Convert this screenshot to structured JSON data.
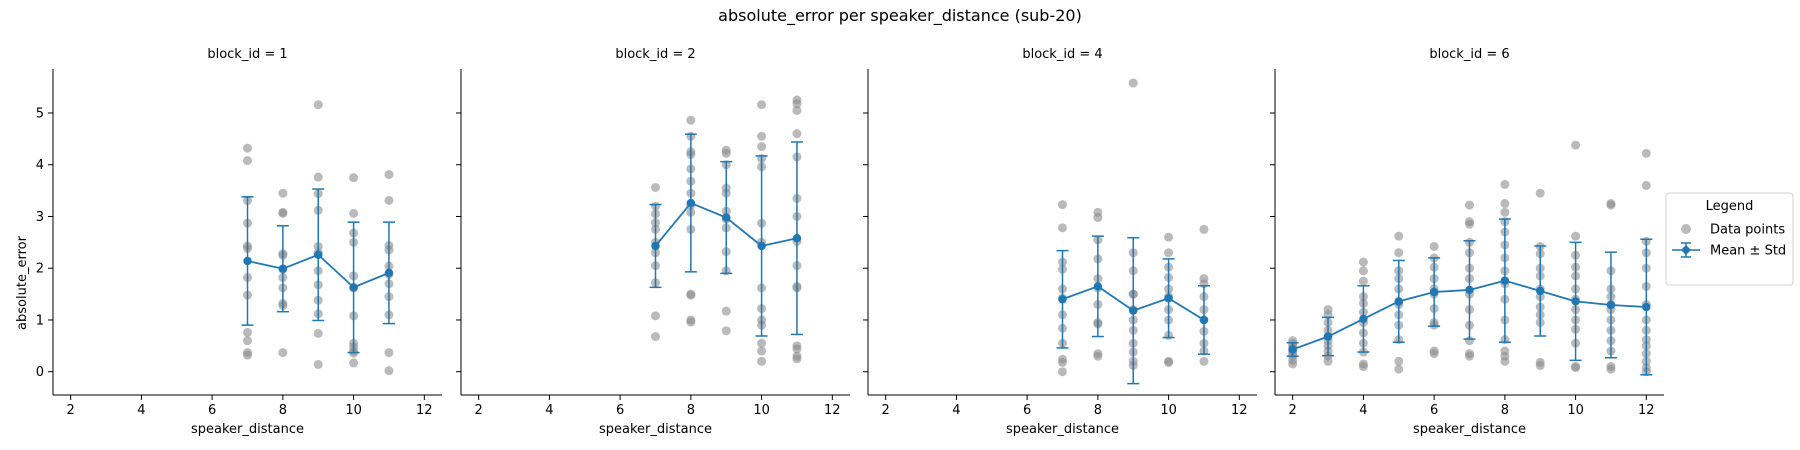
{
  "figure": {
    "title": "absolute_error per speaker_distance (sub-20)",
    "ylabel": "absolute_error",
    "legend": {
      "title": "Legend",
      "entries": [
        "Data points",
        "Mean ± Std"
      ],
      "placement": "right-center"
    }
  },
  "colors": {
    "points": "#8c8c8c",
    "mean": "#1f77b4",
    "axis": "#000000"
  },
  "chart_data": [
    {
      "type": "scatter",
      "title": "block_id = 1",
      "xlabel": "speaker_distance",
      "ylabel": "absolute_error",
      "xlim": [
        1.5,
        12.5
      ],
      "ylim": [
        -0.45,
        5.85
      ],
      "xticks": [
        "2",
        "4",
        "6",
        "8",
        "10",
        "12"
      ],
      "yticks": [
        "0",
        "1",
        "2",
        "3",
        "4",
        "5"
      ],
      "points": [
        {
          "x": 7,
          "y": [
            4.32,
            4.08,
            3.31,
            2.87,
            2.43,
            2.38,
            1.82,
            1.48,
            0.76,
            0.6,
            0.37,
            0.32
          ]
        },
        {
          "x": 8,
          "y": [
            3.45,
            3.08,
            3.06,
            2.28,
            2.25,
            1.98,
            1.82,
            1.62,
            1.32,
            1.28,
            0.37
          ]
        },
        {
          "x": 9,
          "y": [
            5.16,
            3.76,
            3.44,
            3.12,
            2.42,
            2.3,
            1.95,
            1.68,
            1.38,
            1.12,
            0.74,
            0.14
          ]
        },
        {
          "x": 10,
          "y": [
            3.75,
            3.06,
            2.68,
            2.5,
            1.85,
            1.62,
            1.08,
            0.55,
            0.48,
            0.4,
            0.36,
            0.17
          ]
        },
        {
          "x": 11,
          "y": [
            3.81,
            3.31,
            2.44,
            2.35,
            2.04,
            1.88,
            1.7,
            1.45,
            1.1,
            0.37,
            0.02
          ]
        }
      ],
      "series": [
        {
          "name": "Mean ± Std",
          "x": [
            7,
            8,
            9,
            10,
            11
          ],
          "mean": [
            2.14,
            1.99,
            2.26,
            1.63,
            1.91
          ],
          "std": [
            1.24,
            0.83,
            1.27,
            1.26,
            0.98
          ]
        }
      ]
    },
    {
      "type": "scatter",
      "title": "block_id = 2",
      "xlabel": "speaker_distance",
      "ylabel": "absolute_error",
      "xlim": [
        1.5,
        12.5
      ],
      "ylim": [
        -0.45,
        5.85
      ],
      "xticks": [
        "2",
        "4",
        "6",
        "8",
        "10",
        "12"
      ],
      "yticks": [
        "0",
        "1",
        "2",
        "3",
        "4",
        "5"
      ],
      "points": [
        {
          "x": 7,
          "y": [
            3.56,
            3.2,
            3.05,
            2.88,
            2.75,
            2.5,
            2.3,
            2.05,
            1.72,
            1.08,
            0.68
          ]
        },
        {
          "x": 8,
          "y": [
            4.86,
            4.55,
            4.25,
            4.2,
            3.92,
            3.68,
            3.45,
            3.22,
            3.08,
            2.75,
            1.5,
            1.48,
            1.0,
            0.96
          ]
        },
        {
          "x": 9,
          "y": [
            4.28,
            4.22,
            4.0,
            3.55,
            3.45,
            3.1,
            2.95,
            2.78,
            2.32,
            1.95,
            1.17,
            0.79
          ]
        },
        {
          "x": 10,
          "y": [
            5.16,
            4.55,
            4.35,
            4.12,
            3.96,
            2.87,
            2.5,
            1.62,
            1.22,
            1.0,
            0.9,
            0.55,
            0.4,
            0.2
          ]
        },
        {
          "x": 11,
          "y": [
            5.25,
            5.18,
            5.05,
            4.6,
            4.15,
            3.35,
            3.0,
            2.52,
            2.05,
            1.65,
            1.62,
            0.5,
            0.44,
            0.3,
            0.25
          ]
        }
      ],
      "series": [
        {
          "name": "Mean ± Std",
          "x": [
            7,
            8,
            9,
            10,
            11
          ],
          "mean": [
            2.43,
            3.26,
            2.98,
            2.43,
            2.58
          ],
          "std": [
            0.8,
            1.33,
            1.08,
            1.74,
            1.86
          ]
        }
      ]
    },
    {
      "type": "scatter",
      "title": "block_id = 4",
      "xlabel": "speaker_distance",
      "ylabel": "absolute_error",
      "xlim": [
        1.5,
        12.5
      ],
      "ylim": [
        -0.45,
        5.85
      ],
      "xticks": [
        "2",
        "4",
        "6",
        "8",
        "10",
        "12"
      ],
      "yticks": [
        "0",
        "1",
        "2",
        "3",
        "4",
        "5"
      ],
      "points": [
        {
          "x": 7,
          "y": [
            3.23,
            2.78,
            2.12,
            1.98,
            1.6,
            1.42,
            1.1,
            0.84,
            0.55,
            0.24,
            0.18,
            0.0
          ]
        },
        {
          "x": 8,
          "y": [
            3.08,
            2.98,
            2.55,
            2.18,
            1.8,
            1.62,
            1.3,
            0.95,
            0.92,
            0.35,
            0.3
          ]
        },
        {
          "x": 9,
          "y": [
            5.58,
            2.3,
            1.95,
            1.5,
            1.5,
            1.2,
            1.0,
            0.8,
            0.55,
            0.38,
            0.2,
            0.12
          ]
        },
        {
          "x": 10,
          "y": [
            2.6,
            2.3,
            2.02,
            1.82,
            1.6,
            1.45,
            1.2,
            1.0,
            0.7,
            0.2,
            0.18
          ]
        },
        {
          "x": 11,
          "y": [
            2.75,
            1.8,
            1.7,
            1.45,
            1.2,
            1.0,
            0.78,
            0.55,
            0.4,
            0.2
          ]
        }
      ],
      "series": [
        {
          "name": "Mean ± Std",
          "x": [
            7,
            8,
            9,
            10,
            11
          ],
          "mean": [
            1.4,
            1.65,
            1.18,
            1.42,
            1.0
          ],
          "std": [
            0.94,
            0.97,
            1.41,
            0.76,
            0.66
          ]
        }
      ]
    },
    {
      "type": "scatter",
      "title": "block_id = 6",
      "xlabel": "speaker_distance",
      "ylabel": "absolute_error",
      "xlim": [
        1.5,
        12.5
      ],
      "ylim": [
        -0.45,
        5.85
      ],
      "xticks": [
        "2",
        "4",
        "6",
        "8",
        "10",
        "12"
      ],
      "yticks": [
        "0",
        "1",
        "2",
        "3",
        "4",
        "5"
      ],
      "points": [
        {
          "x": 2,
          "y": [
            0.6,
            0.55,
            0.5,
            0.45,
            0.4,
            0.35,
            0.3,
            0.22,
            0.15
          ]
        },
        {
          "x": 3,
          "y": [
            1.2,
            1.1,
            0.95,
            0.8,
            0.68,
            0.6,
            0.5,
            0.4,
            0.3,
            0.2
          ]
        },
        {
          "x": 4,
          "y": [
            2.12,
            1.95,
            1.75,
            1.45,
            1.32,
            1.15,
            0.95,
            0.75,
            0.55,
            0.38,
            0.15,
            0.1
          ]
        },
        {
          "x": 5,
          "y": [
            2.62,
            2.3,
            1.95,
            1.8,
            1.6,
            1.35,
            1.3,
            1.1,
            0.9,
            0.62,
            0.2,
            0.05
          ]
        },
        {
          "x": 6,
          "y": [
            2.42,
            2.2,
            2.02,
            1.8,
            1.6,
            1.5,
            1.22,
            0.95,
            0.9,
            0.4,
            0.35
          ]
        },
        {
          "x": 7,
          "y": [
            3.22,
            2.9,
            2.85,
            2.5,
            2.3,
            2.0,
            1.8,
            1.5,
            1.2,
            0.9,
            0.6,
            0.35,
            0.3
          ]
        },
        {
          "x": 8,
          "y": [
            3.62,
            3.25,
            3.08,
            2.9,
            2.7,
            2.45,
            2.2,
            1.95,
            1.7,
            1.4,
            1.0,
            0.62,
            0.4,
            0.3,
            0.2
          ]
        },
        {
          "x": 9,
          "y": [
            3.45,
            2.42,
            2.28,
            2.0,
            1.85,
            1.6,
            1.45,
            1.25,
            1.1,
            0.95,
            0.18,
            0.12
          ]
        },
        {
          "x": 10,
          "y": [
            4.38,
            2.62,
            2.25,
            2.02,
            1.85,
            1.6,
            1.4,
            1.2,
            1.0,
            0.82,
            0.55,
            0.1,
            0.08
          ]
        },
        {
          "x": 11,
          "y": [
            3.25,
            3.22,
            1.95,
            1.6,
            1.45,
            1.3,
            1.2,
            1.0,
            0.8,
            0.6,
            0.4,
            0.1,
            0.05
          ]
        },
        {
          "x": 12,
          "y": [
            4.22,
            3.6,
            2.52,
            2.3,
            2.0,
            1.65,
            1.3,
            1.0,
            0.8,
            0.62,
            0.5,
            0.35,
            0.2,
            0.08,
            0.0
          ]
        }
      ],
      "series": [
        {
          "name": "Mean ± Std",
          "x": [
            2,
            3,
            4,
            5,
            6,
            7,
            8,
            9,
            10,
            11,
            12
          ],
          "mean": [
            0.43,
            0.68,
            1.02,
            1.36,
            1.54,
            1.58,
            1.76,
            1.56,
            1.36,
            1.29,
            1.25
          ],
          "std": [
            0.13,
            0.37,
            0.64,
            0.79,
            0.66,
            0.95,
            1.19,
            0.87,
            1.14,
            1.02,
            1.31
          ]
        }
      ]
    }
  ]
}
